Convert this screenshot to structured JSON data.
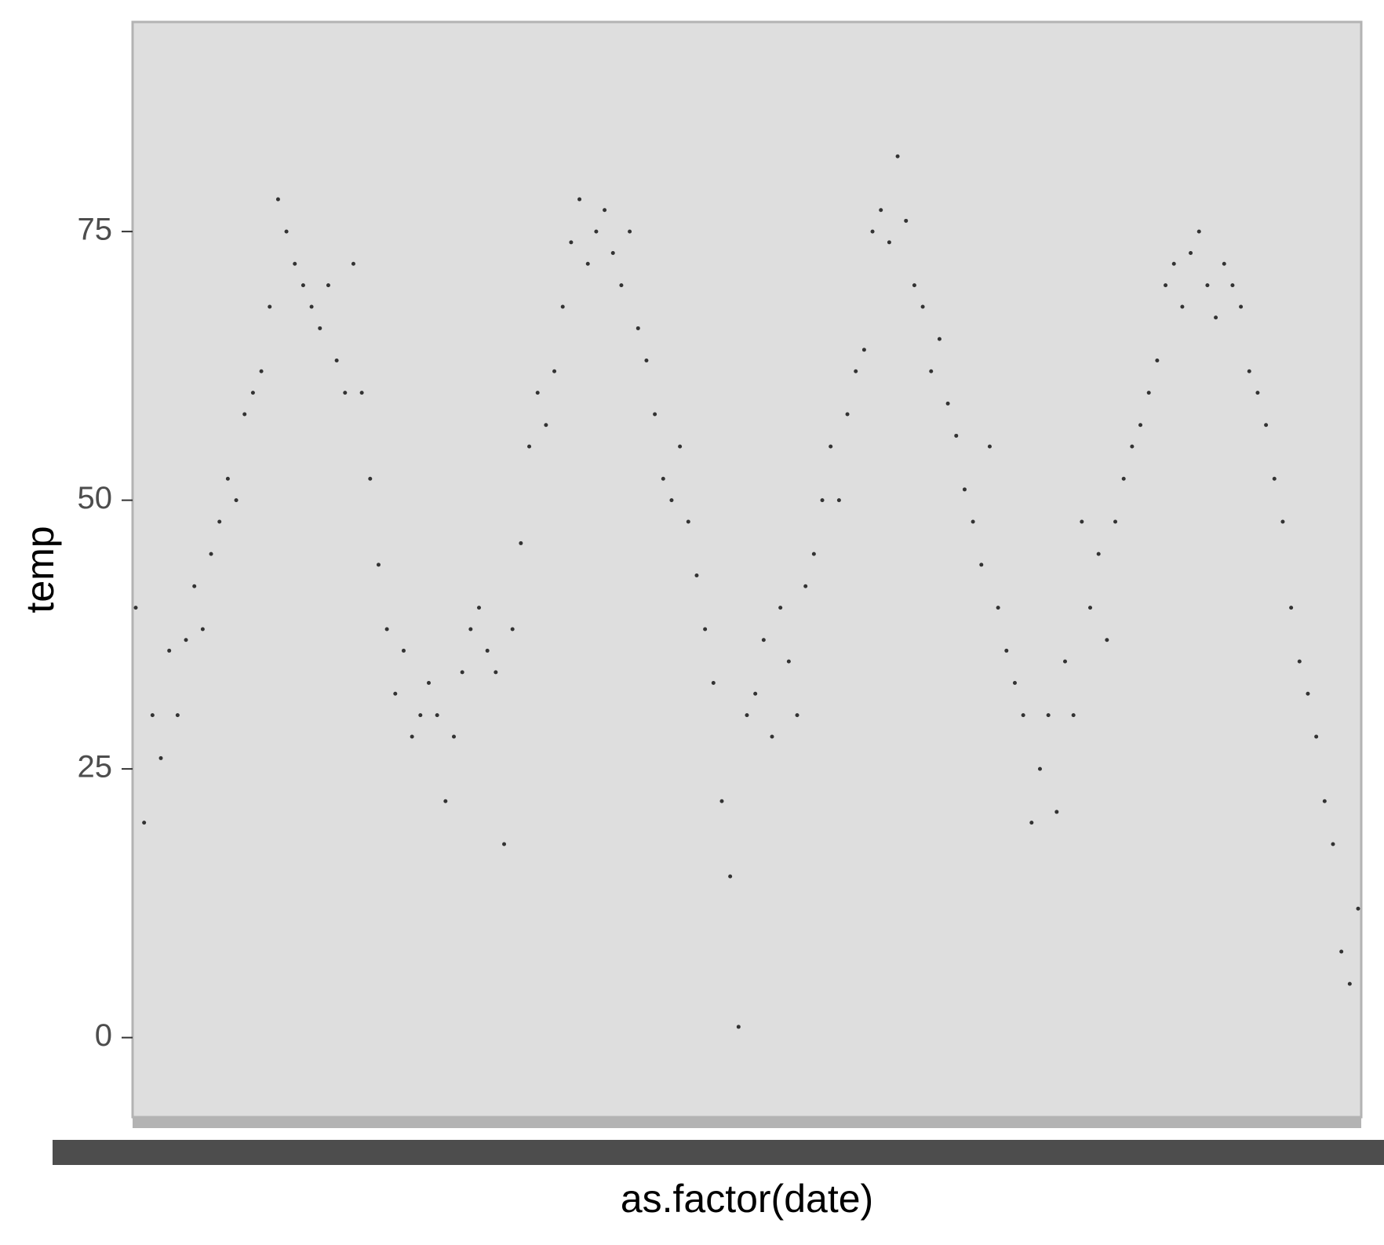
{
  "chart_data": {
    "type": "scatter",
    "x_label": "as.factor(date)",
    "y_label": "temp",
    "x": [
      0,
      10,
      20,
      30,
      40,
      50,
      60,
      70,
      80,
      90,
      100,
      110,
      120,
      130,
      140,
      150,
      160,
      170,
      180,
      190,
      200,
      210,
      220,
      230,
      240,
      250,
      260,
      270,
      280,
      290,
      300,
      310,
      320,
      330,
      340,
      350,
      360,
      370,
      380,
      390,
      400,
      410,
      420,
      430,
      440,
      450,
      460,
      470,
      480,
      490,
      500,
      510,
      520,
      530,
      540,
      550,
      560,
      570,
      580,
      590,
      600,
      610,
      620,
      630,
      640,
      650,
      660,
      670,
      680,
      690,
      700,
      710,
      720,
      730,
      740,
      750,
      760,
      770,
      780,
      790,
      800,
      810,
      820,
      830,
      840,
      850,
      860,
      870,
      880,
      890,
      900,
      910,
      920,
      930,
      940,
      950,
      960,
      970,
      980,
      990,
      1000,
      1010,
      1020,
      1030,
      1040,
      1050,
      1060,
      1070,
      1080,
      1090,
      1100,
      1110,
      1120,
      1130,
      1140,
      1150,
      1160,
      1170,
      1180,
      1190,
      1200,
      1210,
      1220,
      1230,
      1240,
      1250,
      1260,
      1270,
      1280,
      1290,
      1300,
      1310,
      1320,
      1330,
      1340,
      1350,
      1360,
      1370,
      1380,
      1390,
      1400,
      1410,
      1420,
      1430,
      1440,
      1450,
      1460
    ],
    "values": [
      40,
      20,
      30,
      26,
      36,
      30,
      37,
      42,
      38,
      45,
      48,
      52,
      50,
      58,
      60,
      62,
      68,
      78,
      75,
      72,
      70,
      68,
      66,
      70,
      63,
      60,
      72,
      60,
      52,
      44,
      38,
      32,
      36,
      28,
      30,
      33,
      30,
      22,
      28,
      34,
      38,
      40,
      36,
      34,
      18,
      38,
      46,
      55,
      60,
      57,
      62,
      68,
      74,
      78,
      72,
      75,
      77,
      73,
      70,
      75,
      66,
      63,
      58,
      52,
      50,
      55,
      48,
      43,
      38,
      33,
      22,
      15,
      1,
      30,
      32,
      37,
      28,
      40,
      35,
      30,
      42,
      45,
      50,
      55,
      50,
      58,
      62,
      64,
      75,
      77,
      74,
      82,
      76,
      70,
      68,
      62,
      65,
      59,
      56,
      51,
      48,
      44,
      55,
      40,
      36,
      33,
      30,
      20,
      25,
      30,
      21,
      35,
      30,
      48,
      40,
      45,
      37,
      48,
      52,
      55,
      57,
      60,
      63,
      70,
      72,
      68,
      73,
      75,
      70,
      67,
      72,
      70,
      68,
      62,
      60,
      57,
      52,
      48,
      40,
      35,
      32,
      28,
      22,
      18,
      8,
      5,
      12
    ],
    "color": "#333333",
    "xlim": [
      0,
      1460
    ],
    "ylim": [
      -7.4,
      94.5
    ],
    "yticks": [
      0,
      25,
      50,
      75
    ],
    "grid": false
  }
}
